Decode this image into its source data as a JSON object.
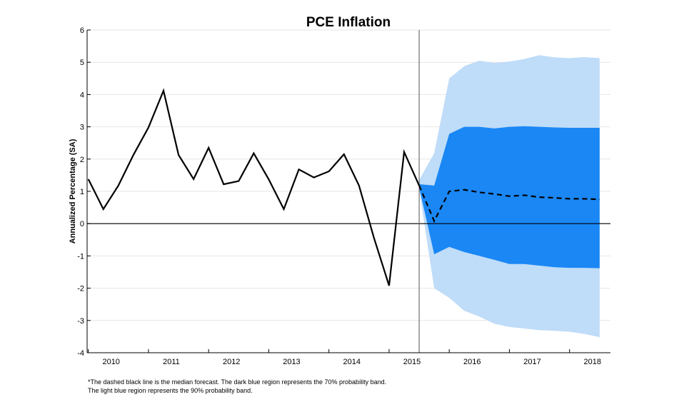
{
  "chart_data": {
    "type": "line",
    "title": "PCE Inflation",
    "xlabel": "",
    "ylabel": "Annualized Percentage (SA)",
    "ylim": [
      -4,
      6
    ],
    "yticks": [
      -4,
      -3,
      -2,
      -1,
      0,
      1,
      2,
      3,
      4,
      5,
      6
    ],
    "xlim": [
      2009.6,
      2018.3
    ],
    "xticks": [
      2010,
      2011,
      2012,
      2013,
      2014,
      2015,
      2016,
      2017,
      2018
    ],
    "grid": true,
    "forecast_start": 2015.12,
    "series": [
      {
        "style": "solid",
        "color": "#000000",
        "x": [
          2009.62,
          2009.87,
          2010.12,
          2010.37,
          2010.62,
          2010.87,
          2011.12,
          2011.37,
          2011.62,
          2011.87,
          2012.12,
          2012.37,
          2012.62,
          2012.87,
          2013.12,
          2013.37,
          2013.62,
          2013.87,
          2014.12,
          2014.37,
          2014.62,
          2014.87,
          2015.12
        ],
        "y": [
          1.38,
          0.45,
          1.18,
          2.13,
          2.98,
          4.12,
          2.13,
          1.38,
          2.35,
          1.22,
          1.32,
          2.18,
          1.37,
          0.45,
          1.68,
          1.43,
          1.62,
          2.15,
          1.18,
          -0.45,
          -1.92,
          2.22,
          1.18
        ]
      },
      {
        "style": "dashed",
        "color": "#000000",
        "x": [
          2015.12,
          2015.37,
          2015.62,
          2015.87,
          2016.12,
          2016.37,
          2016.62,
          2016.87,
          2017.12,
          2017.37,
          2017.62,
          2017.87,
          2018.12
        ],
        "y": [
          1.18,
          0.08,
          1.0,
          1.05,
          0.97,
          0.92,
          0.85,
          0.88,
          0.82,
          0.8,
          0.77,
          0.77,
          0.75
        ]
      }
    ],
    "bands": [
      {
        "color": "#bfdcf8",
        "x": [
          2015.12,
          2015.37,
          2015.62,
          2015.87,
          2016.12,
          2016.37,
          2016.62,
          2016.87,
          2017.12,
          2017.37,
          2017.62,
          2017.87,
          2018.12
        ],
        "upper": [
          1.35,
          2.18,
          4.5,
          4.88,
          5.05,
          4.98,
          5.02,
          5.1,
          5.22,
          5.15,
          5.13,
          5.16,
          5.13
        ],
        "lower": [
          1.05,
          -2.0,
          -2.3,
          -2.7,
          -2.88,
          -3.1,
          -3.2,
          -3.25,
          -3.3,
          -3.32,
          -3.35,
          -3.42,
          -3.52
        ]
      },
      {
        "color": "#1a87f5",
        "x": [
          2015.12,
          2015.37,
          2015.62,
          2015.87,
          2016.12,
          2016.37,
          2016.62,
          2016.87,
          2017.12,
          2017.37,
          2017.62,
          2017.87,
          2018.12
        ],
        "upper": [
          1.22,
          1.18,
          2.78,
          3.0,
          3.0,
          2.95,
          3.0,
          3.02,
          3.0,
          2.98,
          2.97,
          2.97,
          2.97
        ],
        "lower": [
          1.12,
          -0.95,
          -0.72,
          -0.88,
          -1.0,
          -1.12,
          -1.25,
          -1.25,
          -1.3,
          -1.35,
          -1.37,
          -1.37,
          -1.38
        ]
      }
    ]
  },
  "footnotes": [
    "*The dashed black line is the median forecast. The dark blue region represents the 70% probability band.",
    "The light blue region represents the 90% probability band."
  ]
}
